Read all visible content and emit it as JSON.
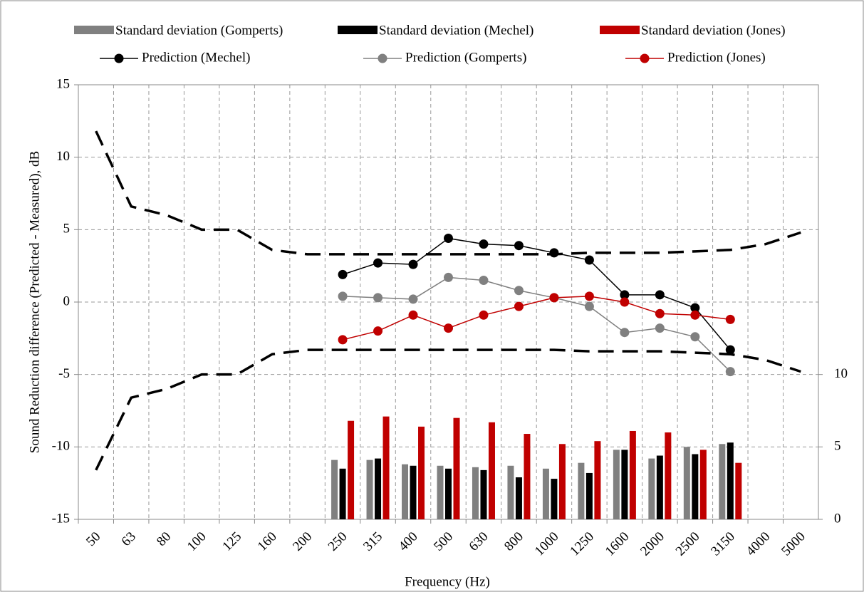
{
  "chart_data": {
    "type": "combo",
    "y_label": "Sound Reduction difference (Predicted - Measured), dB",
    "x_label": "Frequency (Hz)",
    "categories": [
      "50",
      "63",
      "80",
      "100",
      "125",
      "160",
      "200",
      "250",
      "315",
      "400",
      "500",
      "630",
      "800",
      "1000",
      "1250",
      "1600",
      "2000",
      "2500",
      "3150",
      "4000",
      "5000"
    ],
    "ylim": [
      -15,
      15
    ],
    "yticks": [
      -15,
      -10,
      -5,
      0,
      5,
      10,
      15
    ],
    "y2lim": [
      0,
      30
    ],
    "y2ticks": [
      0,
      5,
      10
    ],
    "grid": true,
    "series": [
      {
        "name": "Standard deviation (Gomperts)",
        "type": "bar",
        "axis": "y2",
        "color": "#808080",
        "values": [
          null,
          null,
          null,
          null,
          null,
          null,
          null,
          4.1,
          4.1,
          3.8,
          3.7,
          3.6,
          3.7,
          3.5,
          3.9,
          4.8,
          4.2,
          5.0,
          5.2,
          null,
          null
        ]
      },
      {
        "name": "Standard deviation (Mechel)",
        "type": "bar",
        "axis": "y2",
        "color": "#000000",
        "values": [
          null,
          null,
          null,
          null,
          null,
          null,
          null,
          3.5,
          4.2,
          3.7,
          3.5,
          3.4,
          2.9,
          2.8,
          3.2,
          4.8,
          4.4,
          4.5,
          5.3,
          null,
          null
        ]
      },
      {
        "name": "Standard deviation (Jones)",
        "type": "bar",
        "axis": "y2",
        "color": "#c00000",
        "values": [
          null,
          null,
          null,
          null,
          null,
          null,
          null,
          6.8,
          7.1,
          6.4,
          7.0,
          6.7,
          5.9,
          5.2,
          5.4,
          6.1,
          6.0,
          4.8,
          3.9,
          null,
          null
        ]
      },
      {
        "name": "Prediction (Mechel)",
        "type": "line",
        "color": "#000000",
        "values": [
          null,
          null,
          null,
          null,
          null,
          null,
          null,
          1.9,
          2.7,
          2.6,
          4.4,
          4.0,
          3.9,
          3.4,
          2.9,
          0.5,
          0.5,
          -0.4,
          -3.3,
          null,
          null
        ]
      },
      {
        "name": "Prediction (Gomperts)",
        "type": "line",
        "color": "#808080",
        "values": [
          null,
          null,
          null,
          null,
          null,
          null,
          null,
          0.4,
          0.3,
          0.2,
          1.7,
          1.5,
          0.8,
          0.3,
          -0.3,
          -2.1,
          -1.8,
          -2.4,
          -4.8,
          null,
          null
        ]
      },
      {
        "name": "Prediction (Jones)",
        "type": "line",
        "color": "#c00000",
        "values": [
          null,
          null,
          null,
          null,
          null,
          null,
          null,
          -2.6,
          -2.0,
          -0.9,
          -1.8,
          -0.9,
          -0.3,
          0.3,
          0.4,
          0.0,
          -0.8,
          -0.9,
          -1.2,
          null,
          null
        ]
      },
      {
        "type": "dashed",
        "color": "#000000",
        "values": [
          11.8,
          6.6,
          6.0,
          5.0,
          5.0,
          3.6,
          3.3,
          3.3,
          3.3,
          3.3,
          3.3,
          3.3,
          3.3,
          3.3,
          3.4,
          3.4,
          3.4,
          3.5,
          3.6,
          4.0,
          4.8
        ]
      },
      {
        "type": "dashed",
        "color": "#000000",
        "values": [
          -11.6,
          -6.6,
          -6.0,
          -5.0,
          -5.0,
          -3.6,
          -3.3,
          -3.3,
          -3.3,
          -3.3,
          -3.3,
          -3.3,
          -3.3,
          -3.3,
          -3.4,
          -3.4,
          -3.4,
          -3.5,
          -3.6,
          -4.0,
          -4.8
        ]
      }
    ]
  }
}
